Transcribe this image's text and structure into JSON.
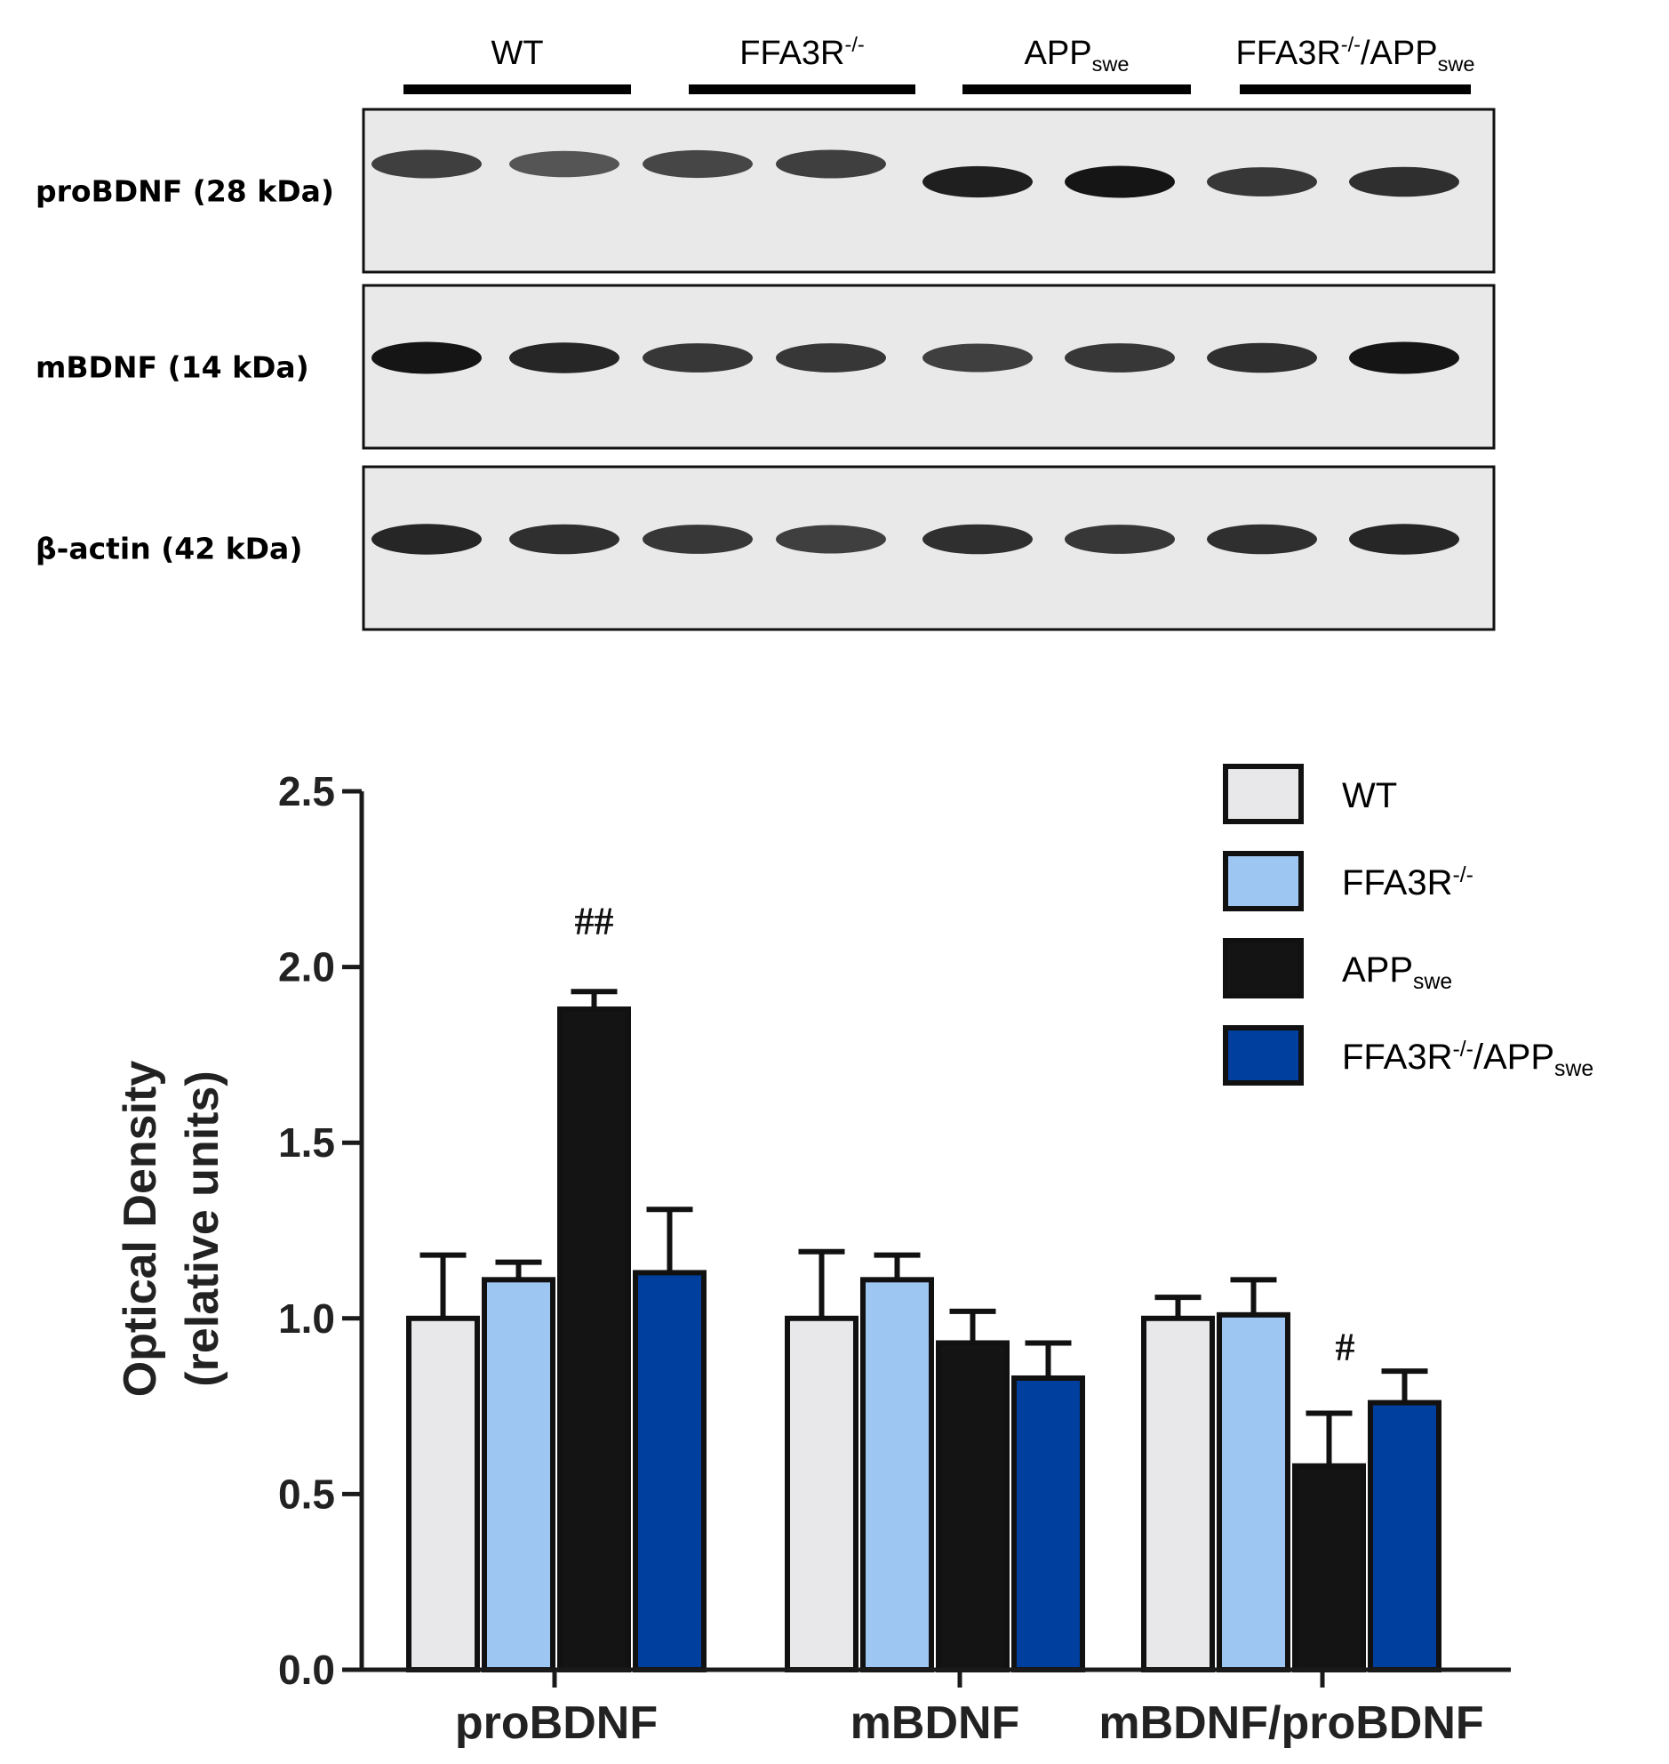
{
  "blot": {
    "lanes": [
      {
        "base": "WT",
        "sup": "",
        "sub": "",
        "base2": "",
        "sub2": ""
      },
      {
        "base": "FFA3R",
        "sup": "-/-",
        "sub": "",
        "base2": "",
        "sub2": ""
      },
      {
        "base": "APP",
        "sup": "",
        "sub": "swe",
        "base2": "",
        "sub2": ""
      },
      {
        "base": "FFA3R",
        "sup": "-/-",
        "sub": "",
        "base2": "/APP",
        "sub2": "swe"
      }
    ],
    "rows": [
      {
        "label": "proBDNF (28 kDa)",
        "intensity": [
          0.75,
          0.6,
          0.7,
          0.75,
          0.95,
          1.0,
          0.8,
          0.85
        ]
      },
      {
        "label": "mBDNF (14 kDa)",
        "intensity": [
          1.0,
          0.9,
          0.8,
          0.8,
          0.75,
          0.8,
          0.85,
          1.0
        ]
      },
      {
        "label": "β-actin (42 kDa)",
        "intensity": [
          0.9,
          0.85,
          0.8,
          0.75,
          0.85,
          0.8,
          0.85,
          0.9
        ]
      }
    ]
  },
  "chart_data": {
    "type": "bar",
    "title": "",
    "xlabel": "",
    "ylabel_line1": "Optical Density",
    "ylabel_line2": "(relative units)",
    "ylim": [
      0,
      2.5
    ],
    "yticks": [
      "0.0",
      "0.5",
      "1.0",
      "1.5",
      "2.0",
      "2.5"
    ],
    "categories": [
      "proBDNF",
      "mBDNF",
      "mBDNF/proBDNF"
    ],
    "series": [
      {
        "name": "WT",
        "legend": {
          "base": "WT",
          "sup": "",
          "sub": "",
          "base2": "",
          "sub2": ""
        },
        "color": "#e8e8ea",
        "values": [
          1.0,
          1.0,
          1.0
        ],
        "errors": [
          0.18,
          0.19,
          0.06
        ]
      },
      {
        "name": "FFA3R-/-",
        "legend": {
          "base": "FFA3R",
          "sup": "-/-",
          "sub": "",
          "base2": "",
          "sub2": ""
        },
        "color": "#9ec6f3",
        "values": [
          1.11,
          1.11,
          1.01
        ],
        "errors": [
          0.05,
          0.07,
          0.1
        ]
      },
      {
        "name": "APPswe",
        "legend": {
          "base": "APP",
          "sup": "",
          "sub": "swe",
          "base2": "",
          "sub2": ""
        },
        "color": "#141414",
        "values": [
          1.88,
          0.93,
          0.58
        ],
        "errors": [
          0.05,
          0.09,
          0.15
        ]
      },
      {
        "name": "FFA3R-/-/APPswe",
        "legend": {
          "base": "FFA3R",
          "sup": "-/-",
          "sub": "",
          "base2": "/APP",
          "sub2": "swe"
        },
        "color": "#003f9e",
        "values": [
          1.13,
          0.83,
          0.76
        ],
        "errors": [
          0.18,
          0.1,
          0.09
        ]
      }
    ],
    "annotations": [
      {
        "text": "##",
        "category": 0,
        "series": 2
      },
      {
        "text": "#",
        "category": 2,
        "series": 2
      }
    ],
    "legend_position": "top-right",
    "grid": false
  }
}
